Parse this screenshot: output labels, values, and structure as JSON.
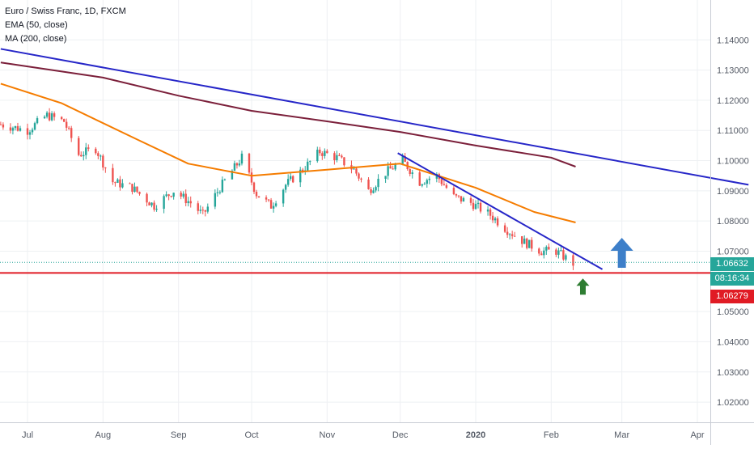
{
  "legend": {
    "symbol": "Euro / Swiss Franc, 1D, FXCM",
    "ema": "EMA (50, close)",
    "ma": "MA (200, close)"
  },
  "price_axis": {
    "ticks": [
      "1.14000",
      "1.13000",
      "1.12000",
      "1.11000",
      "1.10000",
      "1.09000",
      "1.08000",
      "1.07000",
      "1.05000",
      "1.04000",
      "1.03000",
      "1.02000"
    ]
  },
  "time_axis": {
    "labels": [
      "Jul",
      "Aug",
      "Sep",
      "Oct",
      "Nov",
      "Dec",
      "2020",
      "Feb",
      "Mar",
      "Apr"
    ]
  },
  "badges": {
    "last_price": "1.06632",
    "countdown": "08:16:34",
    "support_price": "1.06279"
  },
  "colors": {
    "background": "#ffffff",
    "grid": "#eef0f3",
    "up_candle": "#26a69a",
    "down_candle": "#ef5350",
    "ema_line": "#f57c00",
    "ma_line": "#7b1f3a",
    "trendline": "#2626c8",
    "support_line": "#e01b24",
    "big_arrow": "#3d7fc9",
    "small_arrow": "#2e7d32",
    "axis_text": "#555b66"
  },
  "chart_data": {
    "type": "candlestick",
    "title": "Euro / Swiss Franc, 1D, FXCM",
    "ylim": [
      1.016,
      1.1465
    ],
    "x_labels": [
      "Jul",
      "Aug",
      "Sep",
      "Oct",
      "Nov",
      "Dec",
      "2020",
      "Feb",
      "Mar",
      "Apr"
    ],
    "last_price": 1.06632,
    "support_level": 1.06279,
    "series": [
      {
        "name": "Euro / Swiss Franc",
        "kind": "close_path",
        "values": [
          {
            "t": "2019-06-20",
            "v": 1.112
          },
          {
            "t": "2019-07-01",
            "v": 1.11
          },
          {
            "t": "2019-07-09",
            "v": 1.115
          },
          {
            "t": "2019-07-16",
            "v": 1.113
          },
          {
            "t": "2019-07-22",
            "v": 1.102
          },
          {
            "t": "2019-07-29",
            "v": 1.104
          },
          {
            "t": "2019-08-05",
            "v": 1.093
          },
          {
            "t": "2019-08-13",
            "v": 1.091
          },
          {
            "t": "2019-08-22",
            "v": 1.085
          },
          {
            "t": "2019-08-30",
            "v": 1.09
          },
          {
            "t": "2019-09-06",
            "v": 1.086
          },
          {
            "t": "2019-09-11",
            "v": 1.082
          },
          {
            "t": "2019-09-18",
            "v": 1.091
          },
          {
            "t": "2019-09-27",
            "v": 1.101
          },
          {
            "t": "2019-10-03",
            "v": 1.089
          },
          {
            "t": "2019-10-09",
            "v": 1.085
          },
          {
            "t": "2019-10-15",
            "v": 1.092
          },
          {
            "t": "2019-10-22",
            "v": 1.097
          },
          {
            "t": "2019-10-29",
            "v": 1.103
          },
          {
            "t": "2019-11-05",
            "v": 1.101
          },
          {
            "t": "2019-11-12",
            "v": 1.097
          },
          {
            "t": "2019-11-18",
            "v": 1.09
          },
          {
            "t": "2019-11-25",
            "v": 1.096
          },
          {
            "t": "2019-12-02",
            "v": 1.1
          },
          {
            "t": "2019-12-09",
            "v": 1.093
          },
          {
            "t": "2019-12-16",
            "v": 1.095
          },
          {
            "t": "2019-12-23",
            "v": 1.088
          },
          {
            "t": "2019-12-30",
            "v": 1.086
          },
          {
            "t": "2020-01-07",
            "v": 1.082
          },
          {
            "t": "2020-01-14",
            "v": 1.077
          },
          {
            "t": "2020-01-21",
            "v": 1.073
          },
          {
            "t": "2020-01-28",
            "v": 1.07
          },
          {
            "t": "2020-02-03",
            "v": 1.07
          },
          {
            "t": "2020-02-10",
            "v": 1.066
          }
        ]
      },
      {
        "name": "EMA (50, close)",
        "values": [
          {
            "t": "2019-06-20",
            "v": 1.1255
          },
          {
            "t": "2019-07-15",
            "v": 1.119
          },
          {
            "t": "2019-08-15",
            "v": 1.107
          },
          {
            "t": "2019-09-05",
            "v": 1.099
          },
          {
            "t": "2019-10-01",
            "v": 1.095
          },
          {
            "t": "2019-11-01",
            "v": 1.097
          },
          {
            "t": "2019-12-01",
            "v": 1.099
          },
          {
            "t": "2020-01-01",
            "v": 1.091
          },
          {
            "t": "2020-01-25",
            "v": 1.083
          },
          {
            "t": "2020-02-11",
            "v": 1.0795
          }
        ]
      },
      {
        "name": "MA (200, close)",
        "values": [
          {
            "t": "2019-06-20",
            "v": 1.1325
          },
          {
            "t": "2019-08-01",
            "v": 1.1275
          },
          {
            "t": "2019-09-01",
            "v": 1.1215
          },
          {
            "t": "2019-10-01",
            "v": 1.1165
          },
          {
            "t": "2019-11-01",
            "v": 1.113
          },
          {
            "t": "2019-12-01",
            "v": 1.1095
          },
          {
            "t": "2020-01-01",
            "v": 1.105
          },
          {
            "t": "2020-02-01",
            "v": 1.101
          },
          {
            "t": "2020-02-11",
            "v": 1.098
          }
        ]
      }
    ],
    "annotations": [
      {
        "kind": "trendline",
        "from": {
          "t": "2019-06-20",
          "v": 1.137
        },
        "to": {
          "t": "2020-04-22",
          "v": 1.092
        }
      },
      {
        "kind": "trendline",
        "from": {
          "t": "2019-11-30",
          "v": 1.1025
        },
        "to": {
          "t": "2020-02-22",
          "v": 1.064
        }
      },
      {
        "kind": "horizontal_line",
        "v": 1.06279
      },
      {
        "kind": "arrow_up",
        "t": "2020-03-01",
        "v": 1.068
      },
      {
        "kind": "arrow_up",
        "t": "2020-02-14",
        "v": 1.058
      }
    ]
  }
}
